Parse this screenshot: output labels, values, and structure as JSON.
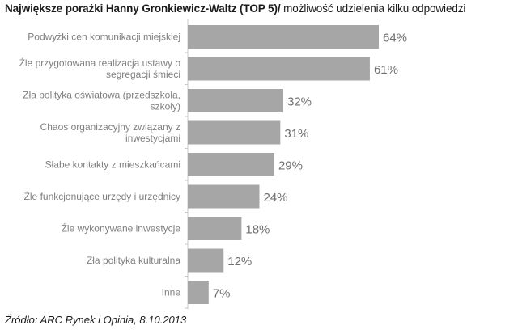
{
  "title": {
    "bold": "Największe porażki Hanny Gronkiewicz-Waltz (TOP 5)/",
    "normal": " możliwość udzielenia kilku odpowiedzi"
  },
  "source": "Źródło: ARC Rynek i Opinia, 8.10.2013",
  "chart_data": {
    "type": "bar",
    "orientation": "horizontal",
    "title": "Największe porażki Hanny Gronkiewicz-Waltz (TOP 5)/ możliwość udzielenia kilku odpowiedzi",
    "categories": [
      [
        "Podwyżki cen komunikacji miejskiej"
      ],
      [
        "Źle przygotowana realizacja ustawy o",
        "segregacji śmieci"
      ],
      [
        "Zła polityka oświatowa (przedszkola,",
        "szkoły)"
      ],
      [
        "Chaos organizacyjny związany z",
        "inwestycjami"
      ],
      [
        "Słabe kontakty z mieszkańcami"
      ],
      [
        "Źle funkcjonujące urzędy i urzędnicy"
      ],
      [
        "Źle wykonywane inwestycje"
      ],
      [
        "Zła polityka kulturalna"
      ],
      [
        "Inne"
      ]
    ],
    "values": [
      64,
      61,
      32,
      31,
      29,
      24,
      18,
      12,
      7
    ],
    "value_labels": [
      "64%",
      "61%",
      "32%",
      "31%",
      "29%",
      "24%",
      "18%",
      "12%",
      "7%"
    ],
    "xlim": [
      0,
      64
    ],
    "bar_color": "#a6a6a6",
    "label_color": "#7f7f7f",
    "value_color": "#6f6f6f",
    "axis_color": "#c8c8c8",
    "grid": false,
    "legend": "none"
  }
}
